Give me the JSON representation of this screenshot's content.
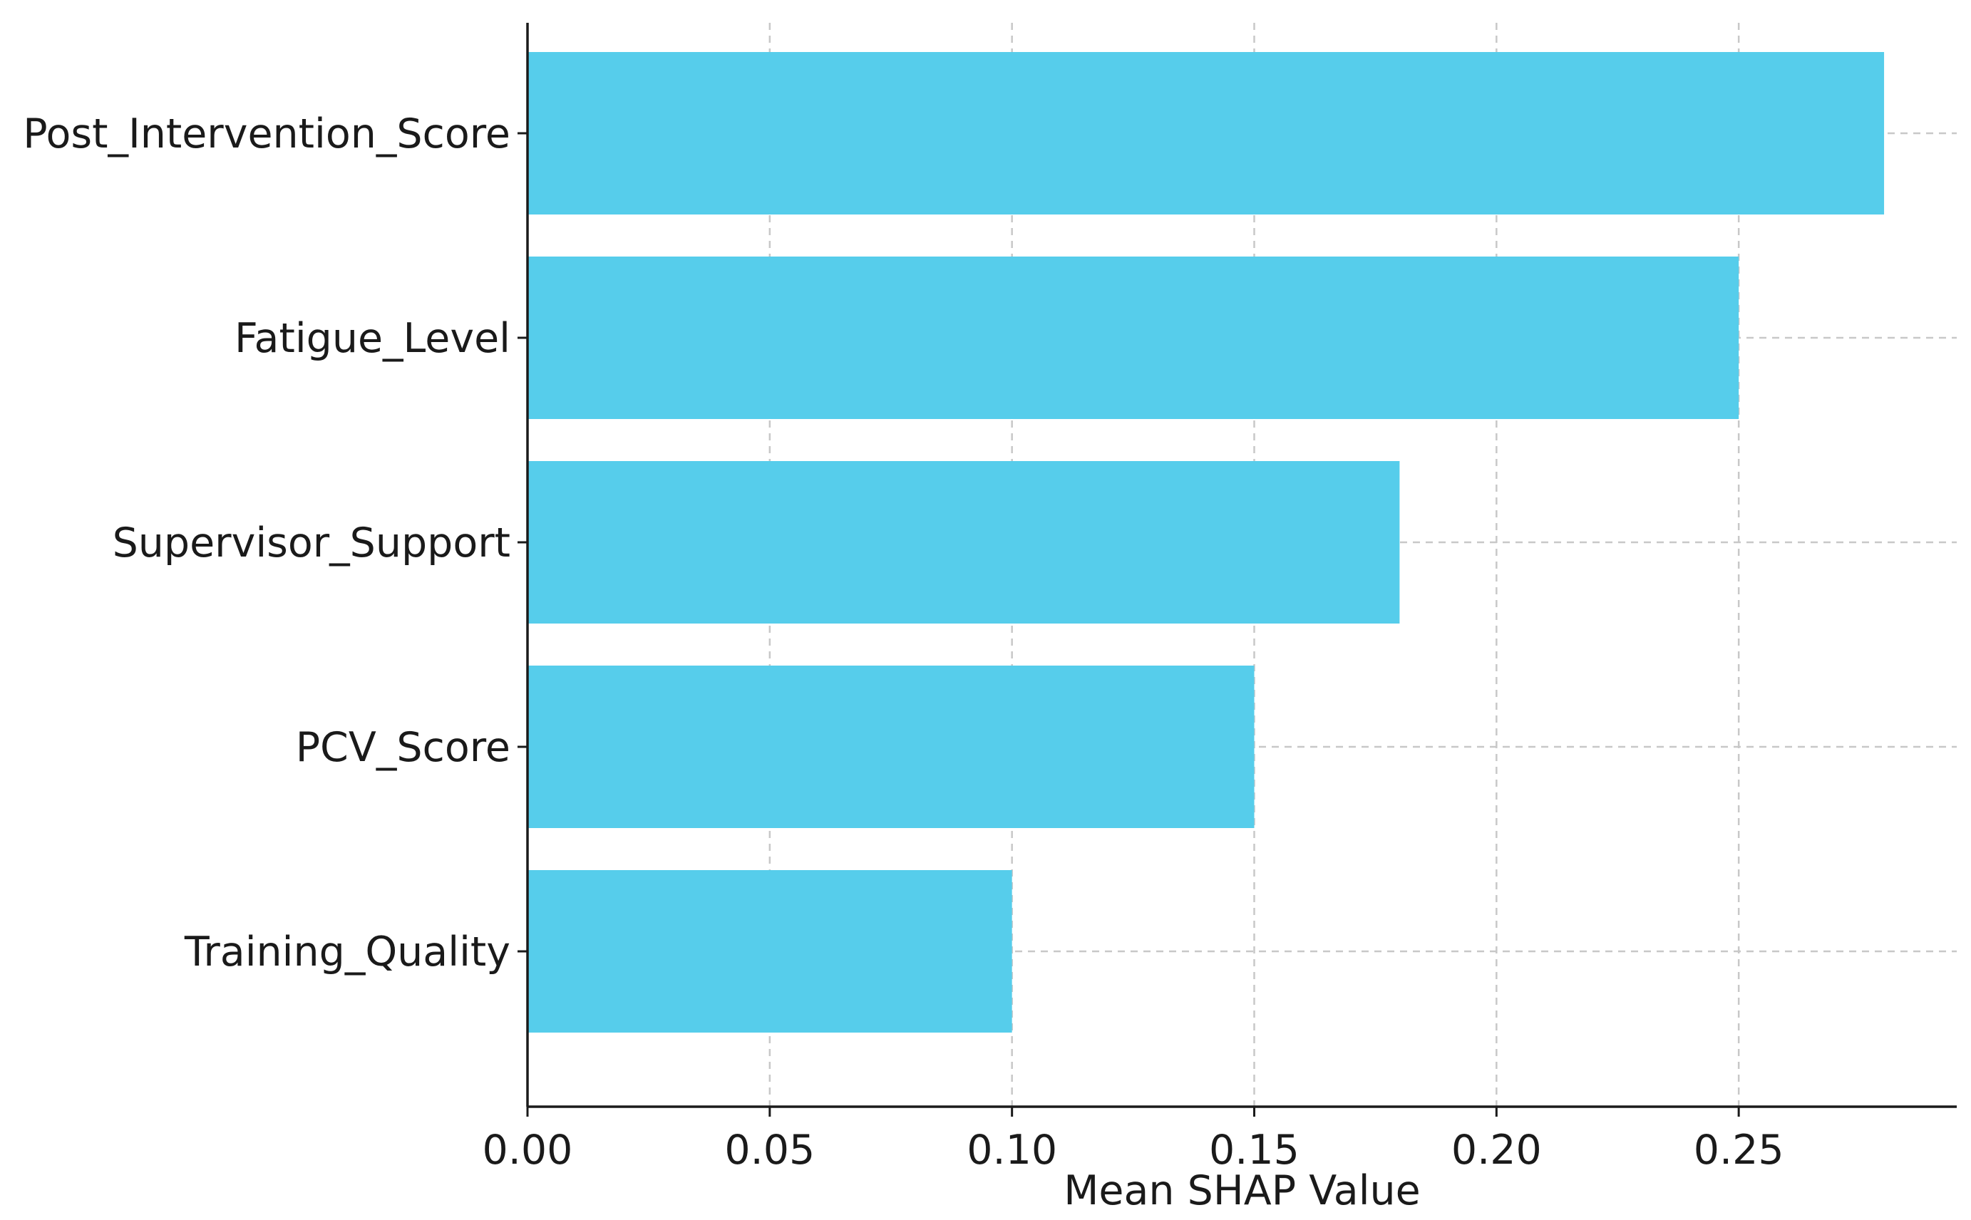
{
  "chart_data": {
    "type": "bar",
    "orientation": "horizontal",
    "title": "",
    "xlabel": "Mean SHAP Value",
    "ylabel": "",
    "categories": [
      "Post_Intervention_Score",
      "Fatigue_Level",
      "Supervisor_Support",
      "PCV_Score",
      "Training_Quality"
    ],
    "values": [
      0.28,
      0.25,
      0.18,
      0.15,
      0.1
    ],
    "xlim": [
      0,
      0.295
    ],
    "xticks": [
      0.0,
      0.05,
      0.1,
      0.15,
      0.2,
      0.25
    ],
    "xtick_labels": [
      "0.00",
      "0.05",
      "0.10",
      "0.15",
      "0.20",
      "0.25"
    ],
    "grid": true,
    "bar_color": "#56CDEB"
  }
}
